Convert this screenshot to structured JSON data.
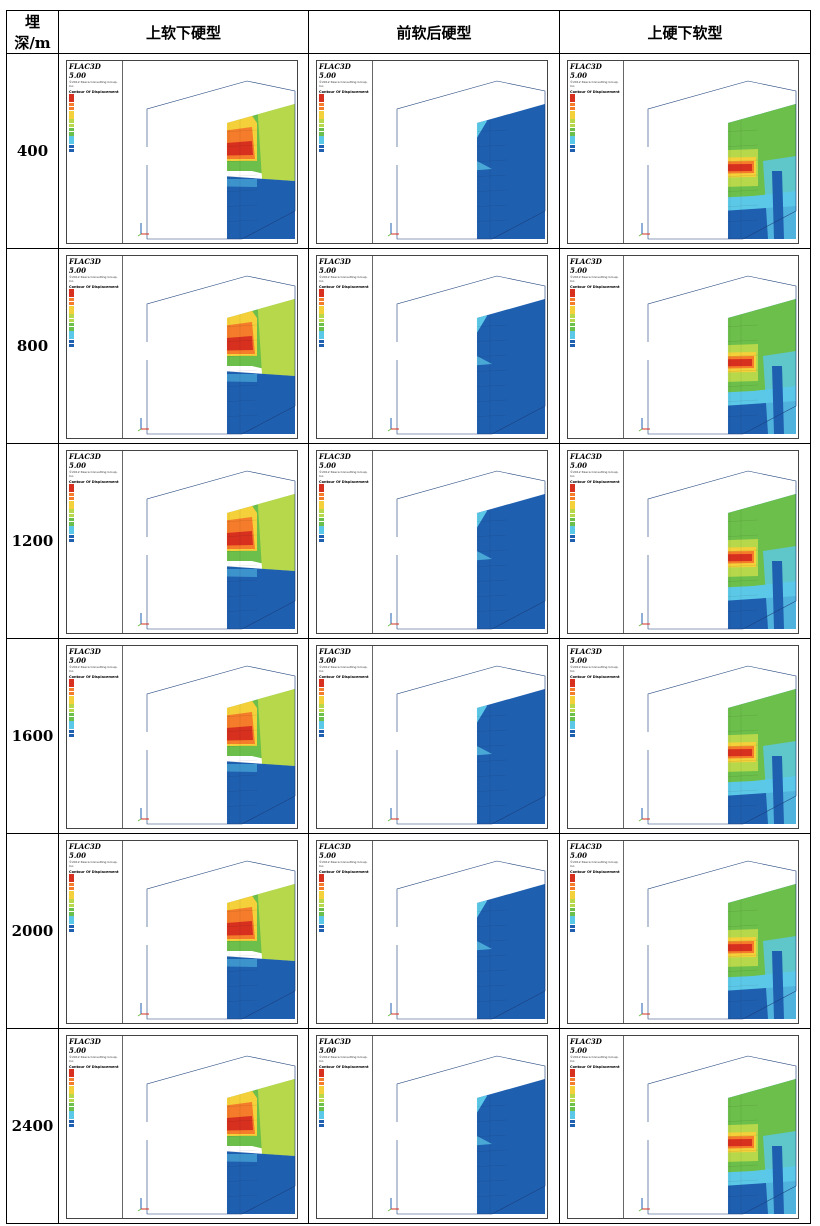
{
  "header": {
    "depth_label": "埋深/m",
    "columns": [
      "上软下硬型",
      "前软后硬型",
      "上硬下软型"
    ]
  },
  "rows": [
    {
      "depth": "400"
    },
    {
      "depth": "800"
    },
    {
      "depth": "1200"
    },
    {
      "depth": "1600"
    },
    {
      "depth": "2000"
    },
    {
      "depth": "2400"
    }
  ],
  "legend": {
    "title": "FLAC3D 5.00",
    "company": "©2012 Itasca Consulting Group, Inc.",
    "heading": "Contour Of Displacement"
  },
  "colors": {
    "red": "#d7301f",
    "orange": "#f47c2a",
    "yellow": "#f4d03a",
    "lightgreen": "#b6d84a",
    "green": "#6cbf4a",
    "cyan": "#5cc8e8",
    "blue": "#1f5fb0"
  }
}
